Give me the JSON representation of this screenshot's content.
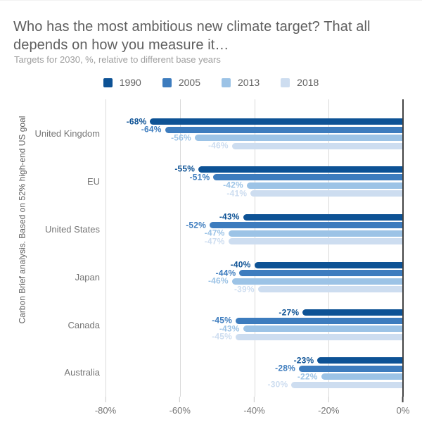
{
  "chart_data": {
    "type": "bar",
    "orientation": "horizontal",
    "title": "Who has the most ambitious new climate target? That all depends on how you measure it…",
    "subtitle": "Targets for 2030, %, relative to different base years",
    "ylabel": "Carbon Brief analysis. Based on 52% high-end US goal",
    "categories": [
      "United Kingdom",
      "EU",
      "United States",
      "Japan",
      "Canada",
      "Australia"
    ],
    "series": [
      {
        "name": "1990",
        "color": "#0d5295",
        "values": [
          -68,
          -55,
          -43,
          -40,
          -27,
          -23
        ]
      },
      {
        "name": "2005",
        "color": "#3d7cbe",
        "values": [
          -64,
          -51,
          -52,
          -44,
          -45,
          -28
        ]
      },
      {
        "name": "2013",
        "color": "#9cc3e6",
        "values": [
          -56,
          -42,
          -47,
          -46,
          -43,
          -22
        ]
      },
      {
        "name": "2018",
        "color": "#cdddf0",
        "values": [
          -46,
          -41,
          -47,
          -39,
          -45,
          -30
        ]
      }
    ],
    "value_label_suffix": "%",
    "xlim": [
      -80,
      0
    ],
    "x_ticks": [
      "-80%",
      "-60%",
      "-40%",
      "-20%",
      "0%"
    ],
    "grid": true,
    "legend_position": "top",
    "legend_labels": [
      "1990",
      "2005",
      "2013",
      "2018"
    ]
  }
}
